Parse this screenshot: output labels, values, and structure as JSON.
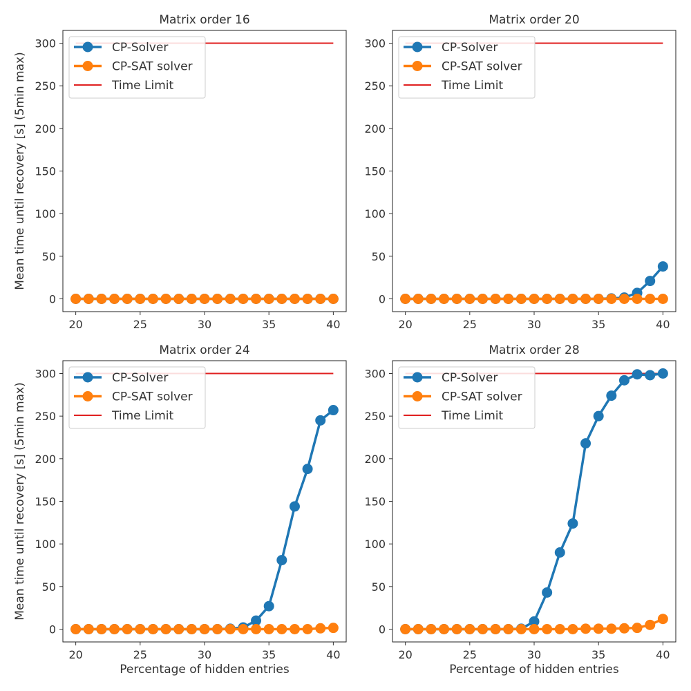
{
  "chart_data": [
    {
      "type": "line",
      "title": "Matrix order 16",
      "xlabel": "",
      "ylabel": "Mean time until recovery [s] (5min max)",
      "xlim": [
        19,
        41
      ],
      "ylim": [
        -15,
        315
      ],
      "xticks": [
        20,
        25,
        30,
        35,
        40
      ],
      "yticks": [
        0,
        50,
        100,
        150,
        200,
        250,
        300
      ],
      "x": [
        20,
        21,
        22,
        23,
        24,
        25,
        26,
        27,
        28,
        29,
        30,
        31,
        32,
        33,
        34,
        35,
        36,
        37,
        38,
        39,
        40
      ],
      "series": [
        {
          "name": "CP-Solver",
          "color": "#1f77b4",
          "values": [
            0,
            0,
            0,
            0,
            0,
            0,
            0,
            0,
            0,
            0,
            0,
            0,
            0,
            0,
            0,
            0,
            0,
            0,
            0,
            0,
            0
          ]
        },
        {
          "name": "CP-SAT solver",
          "color": "#ff7f0e",
          "values": [
            0,
            0,
            0,
            0,
            0,
            0,
            0,
            0,
            0,
            0,
            0,
            0,
            0,
            0,
            0,
            0,
            0,
            0,
            0,
            0,
            0
          ]
        }
      ],
      "time_limit": {
        "name": "Time Limit",
        "value": 300,
        "color": "#e02020"
      },
      "legend_position": "top-left"
    },
    {
      "type": "line",
      "title": "Matrix order 20",
      "xlabel": "",
      "ylabel": "",
      "xlim": [
        19,
        41
      ],
      "ylim": [
        -15,
        315
      ],
      "xticks": [
        20,
        25,
        30,
        35,
        40
      ],
      "yticks": [
        0,
        50,
        100,
        150,
        200,
        250,
        300
      ],
      "x": [
        20,
        21,
        22,
        23,
        24,
        25,
        26,
        27,
        28,
        29,
        30,
        31,
        32,
        33,
        34,
        35,
        36,
        37,
        38,
        39,
        40
      ],
      "series": [
        {
          "name": "CP-Solver",
          "color": "#1f77b4",
          "values": [
            0,
            0,
            0,
            0,
            0,
            0,
            0,
            0,
            0,
            0,
            0,
            0,
            0,
            0,
            0,
            0,
            0.5,
            1.5,
            7,
            21,
            38
          ]
        },
        {
          "name": "CP-SAT solver",
          "color": "#ff7f0e",
          "values": [
            0,
            0,
            0,
            0,
            0,
            0,
            0,
            0,
            0,
            0,
            0,
            0,
            0,
            0,
            0,
            0,
            0,
            0,
            0,
            0,
            0
          ]
        }
      ],
      "time_limit": {
        "name": "Time Limit",
        "value": 300,
        "color": "#e02020"
      },
      "legend_position": "top-left"
    },
    {
      "type": "line",
      "title": "Matrix order 24",
      "xlabel": "Percentage of hidden entries",
      "ylabel": "Mean time until recovery [s] (5min max)",
      "xlim": [
        19,
        41
      ],
      "ylim": [
        -15,
        315
      ],
      "xticks": [
        20,
        25,
        30,
        35,
        40
      ],
      "yticks": [
        0,
        50,
        100,
        150,
        200,
        250,
        300
      ],
      "x": [
        20,
        21,
        22,
        23,
        24,
        25,
        26,
        27,
        28,
        29,
        30,
        31,
        32,
        33,
        34,
        35,
        36,
        37,
        38,
        39,
        40
      ],
      "series": [
        {
          "name": "CP-Solver",
          "color": "#1f77b4",
          "values": [
            0,
            0,
            0,
            0,
            0,
            0,
            0,
            0,
            0,
            0,
            0,
            0,
            0.5,
            2,
            10,
            27,
            81,
            144,
            188,
            245,
            257
          ]
        },
        {
          "name": "CP-SAT solver",
          "color": "#ff7f0e",
          "values": [
            0,
            0,
            0,
            0,
            0,
            0,
            0,
            0,
            0,
            0,
            0,
            0,
            0,
            0,
            0,
            0,
            0,
            0,
            0,
            1,
            1.5
          ]
        }
      ],
      "time_limit": {
        "name": "Time Limit",
        "value": 300,
        "color": "#e02020"
      },
      "legend_position": "top-left"
    },
    {
      "type": "line",
      "title": "Matrix order 28",
      "xlabel": "Percentage of hidden entries",
      "ylabel": "",
      "xlim": [
        19,
        41
      ],
      "ylim": [
        -15,
        315
      ],
      "xticks": [
        20,
        25,
        30,
        35,
        40
      ],
      "yticks": [
        0,
        50,
        100,
        150,
        200,
        250,
        300
      ],
      "x": [
        20,
        21,
        22,
        23,
        24,
        25,
        26,
        27,
        28,
        29,
        30,
        31,
        32,
        33,
        34,
        35,
        36,
        37,
        38,
        39,
        40
      ],
      "series": [
        {
          "name": "CP-Solver",
          "color": "#1f77b4",
          "values": [
            0,
            0,
            0,
            0,
            0,
            0,
            0,
            0,
            0,
            0.5,
            9,
            43,
            90,
            124,
            218,
            250,
            274,
            292,
            299,
            298,
            300
          ]
        },
        {
          "name": "CP-SAT solver",
          "color": "#ff7f0e",
          "values": [
            0,
            0,
            0,
            0,
            0,
            0,
            0,
            0,
            0,
            0,
            0,
            0,
            0,
            0,
            0.5,
            0.5,
            0.5,
            1,
            1.5,
            5,
            12
          ]
        }
      ],
      "time_limit": {
        "name": "Time Limit",
        "value": 300,
        "color": "#e02020"
      },
      "legend_position": "top-left"
    }
  ]
}
